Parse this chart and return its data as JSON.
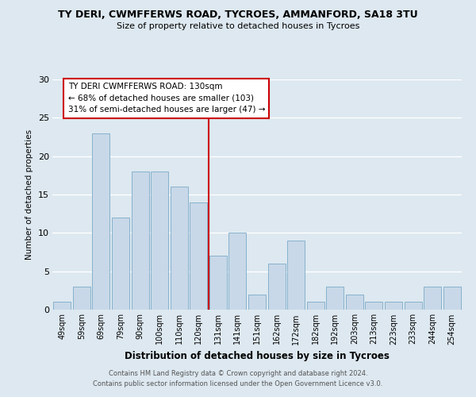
{
  "title": "TY DERI, CWMFFERWS ROAD, TYCROES, AMMANFORD, SA18 3TU",
  "subtitle": "Size of property relative to detached houses in Tycroes",
  "xlabel": "Distribution of detached houses by size in Tycroes",
  "ylabel": "Number of detached properties",
  "categories": [
    "49sqm",
    "59sqm",
    "69sqm",
    "79sqm",
    "90sqm",
    "100sqm",
    "110sqm",
    "120sqm",
    "131sqm",
    "141sqm",
    "151sqm",
    "162sqm",
    "172sqm",
    "182sqm",
    "192sqm",
    "203sqm",
    "213sqm",
    "223sqm",
    "233sqm",
    "244sqm",
    "254sqm"
  ],
  "values": [
    1,
    3,
    23,
    12,
    18,
    18,
    16,
    14,
    7,
    10,
    2,
    6,
    9,
    1,
    3,
    2,
    1,
    1,
    1,
    3,
    3
  ],
  "bar_color": "#c8d8e8",
  "bar_edge_color": "#7aaac8",
  "vline_color": "#cc0000",
  "annotation_title": "TY DERI CWMFFERWS ROAD: 130sqm",
  "annotation_line2": "← 68% of detached houses are smaller (103)",
  "annotation_line3": "31% of semi-detached houses are larger (47) →",
  "annotation_box_color": "#cc0000",
  "ylim": [
    0,
    30
  ],
  "yticks": [
    0,
    5,
    10,
    15,
    20,
    25,
    30
  ],
  "footer1": "Contains HM Land Registry data © Crown copyright and database right 2024.",
  "footer2": "Contains public sector information licensed under the Open Government Licence v3.0.",
  "bg_color": "#dde8f0",
  "plot_bg_color": "#dde8f0"
}
